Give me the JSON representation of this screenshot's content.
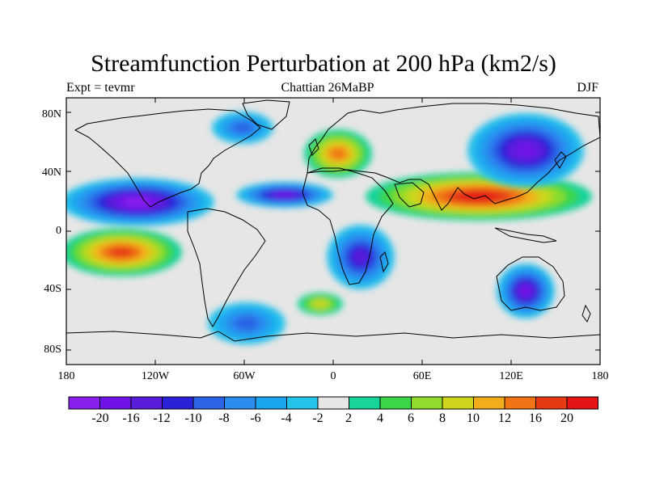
{
  "map": {
    "title": "Streamfunction Perturbation at 200 hPa (km2/s)",
    "left_label": "Expt = tevmr",
    "center_label": "Chattian  26MaBP",
    "right_label": "DJF",
    "y_ticks": [
      "80N",
      "40N",
      "0",
      "40S",
      "80S"
    ],
    "x_ticks": [
      "180",
      "120W",
      "60W",
      "0",
      "60E",
      "120E",
      "180"
    ],
    "background_color": "#e6e6e6",
    "coastline_color": "#000000"
  },
  "colorbar": {
    "labels": [
      "-20",
      "-16",
      "-12",
      "-10",
      "-8",
      "-6",
      "-4",
      "-2",
      "2",
      "4",
      "6",
      "8",
      "10",
      "12",
      "16",
      "20"
    ],
    "colors": [
      "#8a1ff0",
      "#7013e8",
      "#5a1ddc",
      "#2b22d8",
      "#2b64e6",
      "#2b8df0",
      "#1aa6ef",
      "#25c2ec",
      "#e6e6e6",
      "#18d39a",
      "#3bd54a",
      "#8fdc2c",
      "#cfd51c",
      "#f2ad1c",
      "#f07314",
      "#e63a14",
      "#e61414"
    ]
  },
  "anomalies": [
    {
      "name": "north-pacific-low",
      "value": -20
    },
    {
      "name": "equatorial-atlantic-low",
      "value": -16
    },
    {
      "name": "south-pacific-high",
      "value": 16
    },
    {
      "name": "south-asia-high",
      "value": 20
    },
    {
      "name": "europe-high",
      "value": 12
    },
    {
      "name": "northwest-pacific-low",
      "value": -16
    },
    {
      "name": "australia-low",
      "value": -16
    },
    {
      "name": "southern-africa-low",
      "value": -14
    },
    {
      "name": "southern-south-america-low",
      "value": -8
    },
    {
      "name": "northern-canada-low",
      "value": -8
    },
    {
      "name": "south-atlantic-high",
      "value": 8
    }
  ]
}
